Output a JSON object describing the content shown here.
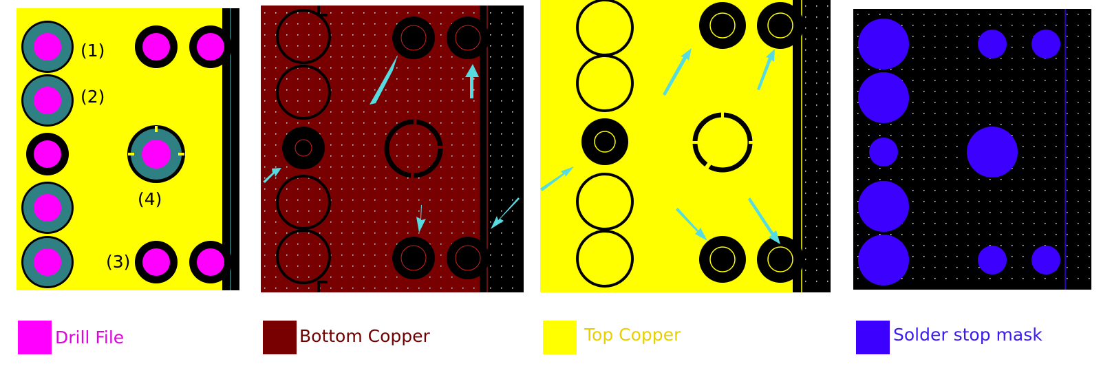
{
  "panels": [
    {
      "id": "drill",
      "background": "#ffff00",
      "labels": [
        "(1)",
        "(2)",
        "(3)",
        "(4)"
      ]
    },
    {
      "id": "bottom-copper",
      "background": "#780000"
    },
    {
      "id": "top-copper",
      "background": "#ffff00"
    },
    {
      "id": "solder-mask",
      "background": "#000000"
    }
  ],
  "legend": [
    {
      "label": "Drill File",
      "color": "#ff00ff",
      "text_color": "#e000e0"
    },
    {
      "label": "Bottom Copper",
      "color": "#780000",
      "text_color": "#6e0000"
    },
    {
      "label": "Top Copper",
      "color": "#ffff00",
      "text_color": "#e8d000"
    },
    {
      "label": "Solder stop mask",
      "color": "#3c00ff",
      "text_color": "#3a1cf0"
    }
  ],
  "colors": {
    "drill": "#ff00ff",
    "pad_ring": "#2e8083",
    "black": "#000000",
    "arrow": "#56dbe0",
    "mask": "#3c00ff",
    "grid_dot": "#ffffff",
    "fine_circle_red": "#d02020",
    "fine_circle_yellow": "#ffff00"
  }
}
